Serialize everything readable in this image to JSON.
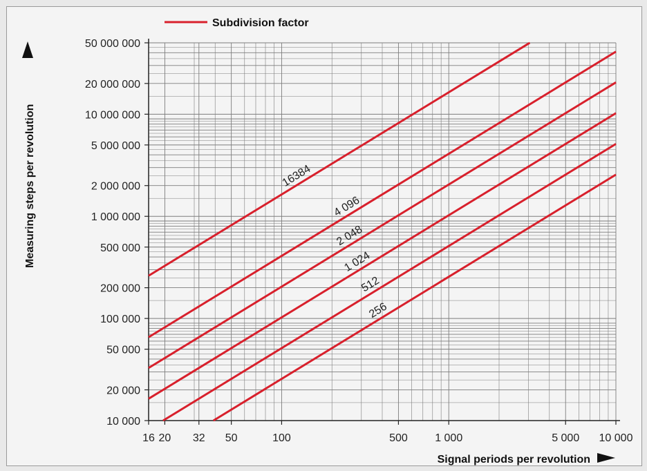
{
  "chart_data": {
    "type": "line",
    "title": "",
    "legend": {
      "label": "Subdivision factor",
      "placement": "top-left"
    },
    "xlabel": "Signal periods per revolution",
    "ylabel": "Measuring steps per revolution",
    "x_scale": "log",
    "y_scale": "log",
    "xlim": [
      16,
      10000
    ],
    "ylim": [
      10000,
      50000000
    ],
    "x_ticks": [
      {
        "value": 16,
        "label": "16"
      },
      {
        "value": 20,
        "label": "20"
      },
      {
        "value": 32,
        "label": "32"
      },
      {
        "value": 50,
        "label": "50"
      },
      {
        "value": 100,
        "label": "100"
      },
      {
        "value": 500,
        "label": "500"
      },
      {
        "value": 1000,
        "label": "1 000"
      },
      {
        "value": 5000,
        "label": "5 000"
      },
      {
        "value": 10000,
        "label": "10 000"
      }
    ],
    "y_ticks": [
      {
        "value": 10000,
        "label": "10 000"
      },
      {
        "value": 20000,
        "label": "20 000"
      },
      {
        "value": 50000,
        "label": "50 000"
      },
      {
        "value": 100000,
        "label": "100 000"
      },
      {
        "value": 200000,
        "label": "200 000"
      },
      {
        "value": 500000,
        "label": "500 000"
      },
      {
        "value": 1000000,
        "label": "1 000 000"
      },
      {
        "value": 2000000,
        "label": "2 000 000"
      },
      {
        "value": 5000000,
        "label": "5 000 000"
      },
      {
        "value": 10000000,
        "label": "10 000 000"
      },
      {
        "value": 20000000,
        "label": "20 000 000"
      },
      {
        "value": 50000000,
        "label": "50 000 000"
      }
    ],
    "series": [
      {
        "factor": 16384,
        "label": "16384",
        "x": [
          16,
          3052
        ],
        "y": [
          262144,
          50000000
        ],
        "label_at_x": 130
      },
      {
        "factor": 4096,
        "label": "4 096",
        "x": [
          16,
          10000
        ],
        "y": [
          65536,
          40960000
        ],
        "label_at_x": 260
      },
      {
        "factor": 2048,
        "label": "2 048",
        "x": [
          16,
          10000
        ],
        "y": [
          32768,
          20480000
        ],
        "label_at_x": 270
      },
      {
        "factor": 1024,
        "label": "1 024",
        "x": [
          16,
          10000
        ],
        "y": [
          16384,
          10240000
        ],
        "label_at_x": 300
      },
      {
        "factor": 512,
        "label": "512",
        "x": [
          19.53,
          10000
        ],
        "y": [
          10000,
          5120000
        ],
        "label_at_x": 360
      },
      {
        "factor": 256,
        "label": "256",
        "x": [
          39.06,
          10000
        ],
        "y": [
          10000,
          2560000
        ],
        "label_at_x": 400
      }
    ],
    "grid": true,
    "colors": {
      "line": "#d8202c",
      "grid": "#7c7c7c",
      "axis": "#222222"
    }
  }
}
